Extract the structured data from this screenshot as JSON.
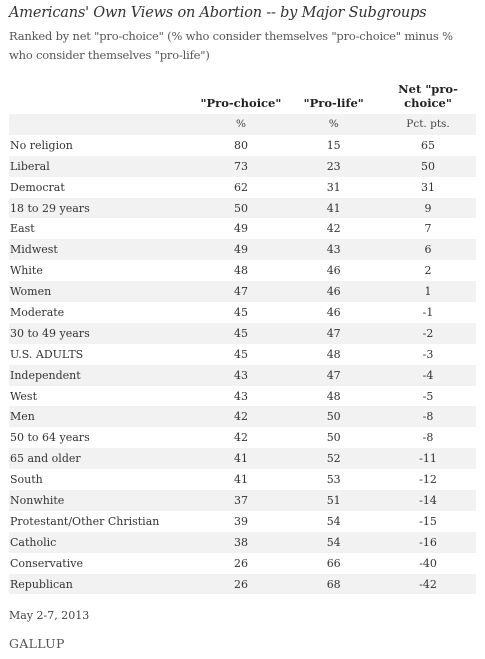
{
  "chart_data": {
    "type": "table",
    "title": "Americans' Own Views on Abortion -- by Major Subgroups",
    "subtitle": "Ranked by net \"pro-choice\" (% who consider themselves \"pro-choice\" minus % who consider themselves \"pro-life\")",
    "columns": [
      "\"Pro-choice\"",
      "\"Pro-life\"",
      "Net \"pro-choice\""
    ],
    "units": [
      "%",
      "%",
      "Pct. pts."
    ],
    "rows": [
      {
        "label": "No religion",
        "values": [
          "80",
          "15",
          "65"
        ]
      },
      {
        "label": "Liberal",
        "values": [
          "73",
          "23",
          "50"
        ]
      },
      {
        "label": "Democrat",
        "values": [
          "62",
          "31",
          "31"
        ]
      },
      {
        "label": "18 to 29 years",
        "values": [
          "50",
          "41",
          "9"
        ]
      },
      {
        "label": "East",
        "values": [
          "49",
          "42",
          "7"
        ]
      },
      {
        "label": "Midwest",
        "values": [
          "49",
          "43",
          "6"
        ]
      },
      {
        "label": "White",
        "values": [
          "48",
          "46",
          "2"
        ]
      },
      {
        "label": "Women",
        "values": [
          "47",
          "46",
          "1"
        ]
      },
      {
        "label": "Moderate",
        "values": [
          "45",
          "46",
          "-1"
        ]
      },
      {
        "label": "30 to 49 years",
        "values": [
          "45",
          "47",
          "-2"
        ]
      },
      {
        "label": "U.S. ADULTS",
        "values": [
          "45",
          "48",
          "-3"
        ]
      },
      {
        "label": "Independent",
        "values": [
          "43",
          "47",
          "-4"
        ]
      },
      {
        "label": "West",
        "values": [
          "43",
          "48",
          "-5"
        ]
      },
      {
        "label": "Men",
        "values": [
          "42",
          "50",
          "-8"
        ]
      },
      {
        "label": "50 to 64 years",
        "values": [
          "42",
          "50",
          "-8"
        ]
      },
      {
        "label": "65 and older",
        "values": [
          "41",
          "52",
          "-11"
        ]
      },
      {
        "label": "South",
        "values": [
          "41",
          "53",
          "-12"
        ]
      },
      {
        "label": "Nonwhite",
        "values": [
          "37",
          "51",
          "-14"
        ]
      },
      {
        "label": "Protestant/Other Christian",
        "values": [
          "39",
          "54",
          "-15"
        ]
      },
      {
        "label": "Catholic",
        "values": [
          "38",
          "54",
          "-16"
        ]
      },
      {
        "label": "Conservative",
        "values": [
          "26",
          "66",
          "-40"
        ]
      },
      {
        "label": "Republican",
        "values": [
          "26",
          "68",
          "-42"
        ]
      }
    ],
    "footnote": "May 2-7, 2013",
    "source": "GALLUP",
    "colors": {
      "row_shade": "#f2f2f2",
      "text": "#333333"
    }
  }
}
